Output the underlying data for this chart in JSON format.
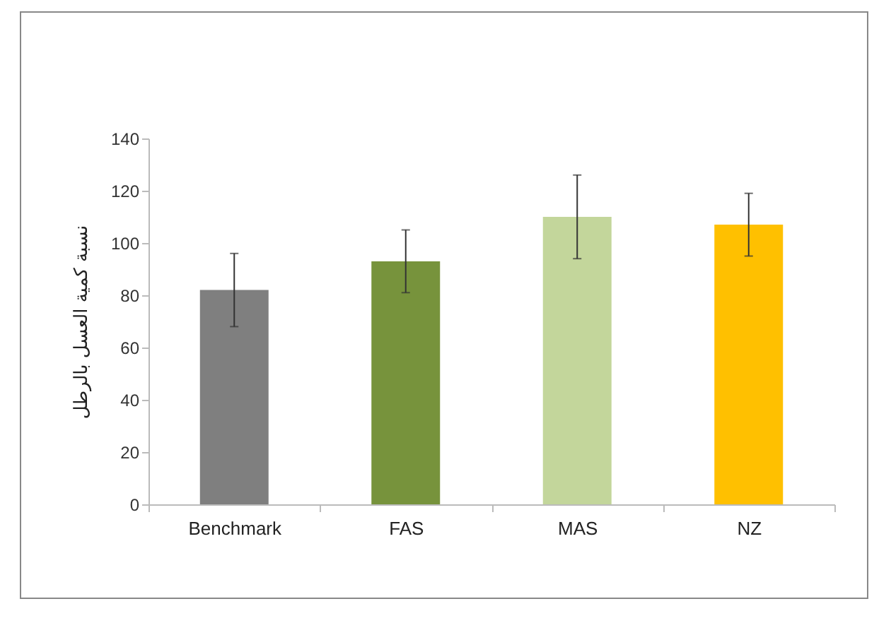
{
  "chart_data": {
    "type": "bar",
    "ylabel": "نسبة كمية العسل بالرطل",
    "categories": [
      "Benchmark",
      "FAS",
      "MAS",
      "NZ"
    ],
    "values": [
      82,
      93,
      110,
      107
    ],
    "errors": [
      14,
      12,
      16,
      12
    ],
    "colors": [
      "#7f7f7f",
      "#77933c",
      "#c3d69b",
      "#ffc000"
    ],
    "ylim": [
      0,
      140
    ],
    "yticks": [
      0,
      20,
      40,
      60,
      80,
      100,
      120,
      140
    ],
    "grid": false
  }
}
